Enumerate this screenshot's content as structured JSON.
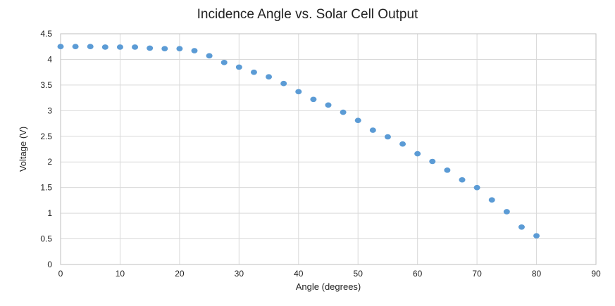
{
  "chart_data": {
    "type": "scatter",
    "title": "Incidence Angle vs. Solar Cell Output",
    "xlabel": "Angle (degrees)",
    "ylabel": "Voltage (V)",
    "xlim": [
      0,
      90
    ],
    "ylim": [
      0,
      4.5
    ],
    "xticks": [
      0,
      10,
      20,
      30,
      40,
      50,
      60,
      70,
      80,
      90
    ],
    "yticks": [
      0,
      0.5,
      1,
      1.5,
      2,
      2.5,
      3,
      3.5,
      4,
      4.5
    ],
    "grid": true,
    "legend": "none",
    "marker_color": "#5b9bd5",
    "series": [
      {
        "x": [
          0,
          2.5,
          5,
          7.5,
          10,
          12.5,
          15,
          17.5,
          20,
          22.5,
          25,
          27.5,
          30,
          32.5,
          35,
          37.5,
          40,
          42.5,
          45,
          47.5,
          50,
          52.5,
          55,
          57.5,
          60,
          62.5,
          65,
          67.5,
          70,
          72.5,
          75,
          77.5,
          80
        ],
        "y": [
          4.25,
          4.25,
          4.25,
          4.24,
          4.24,
          4.24,
          4.22,
          4.21,
          4.21,
          4.17,
          4.07,
          3.94,
          3.85,
          3.75,
          3.66,
          3.53,
          3.37,
          3.22,
          3.11,
          2.97,
          2.81,
          2.62,
          2.49,
          2.35,
          2.16,
          2.01,
          1.84,
          1.65,
          1.5,
          1.26,
          1.03,
          0.73,
          0.56
        ]
      }
    ]
  }
}
